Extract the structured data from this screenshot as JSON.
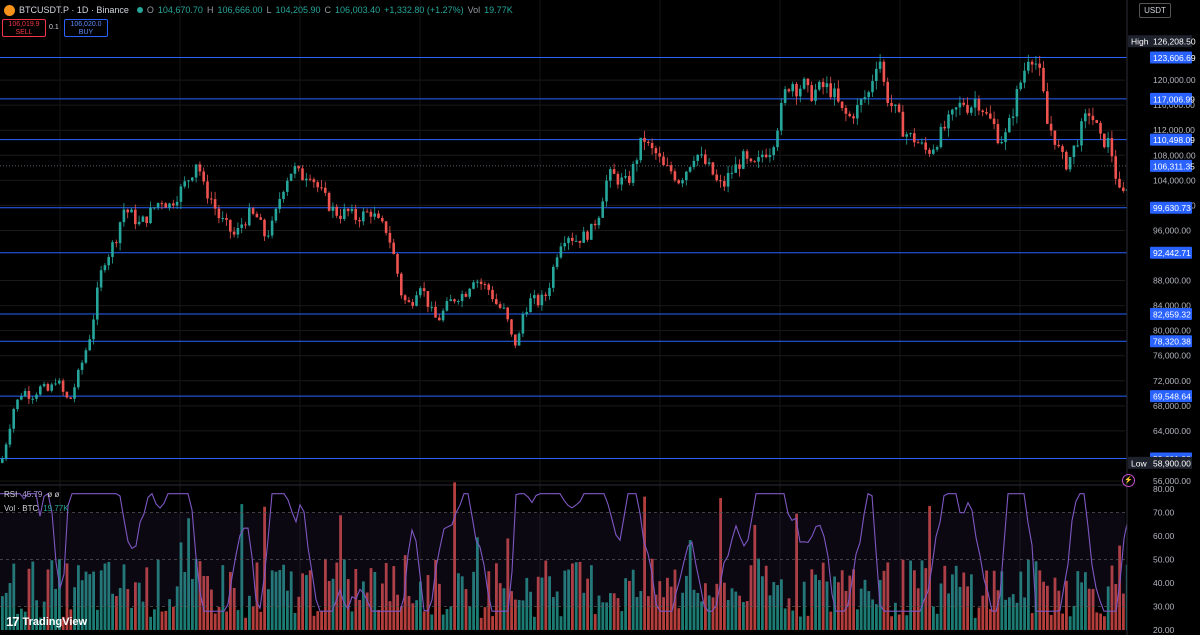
{
  "header": {
    "symbol": "BTCUSDT.P · 1D · Binance",
    "open_label": "O",
    "open": "104,670.70",
    "high_label": "H",
    "high": "106,666.00",
    "low_label": "L",
    "low": "104,205.90",
    "close_label": "C",
    "close": "106,003.40",
    "change": "+1,332.80 (+1.27%)",
    "vol_label": "Vol",
    "vol": "19.77K"
  },
  "trade": {
    "sell_price": "106,019.9",
    "sell_label": "SELL",
    "qty": "0.1",
    "buy_price": "106,020.0",
    "buy_label": "BUY"
  },
  "indicators": {
    "rsi_label": "RSI",
    "rsi_value": "45.79",
    "rsi_extra": "ø ø",
    "vol_label": "Vol · BTC",
    "vol_value": "19.77K"
  },
  "currency": "USDT",
  "branding": "TradingView",
  "colors": {
    "up": "#26a69a",
    "down": "#ef5350",
    "level": "#2962ff",
    "rsi": "#7e57c2",
    "background": "#000000"
  },
  "chart_data": {
    "type": "candlestick",
    "y_range": [
      56000,
      128000
    ],
    "price_ticks": [
      "56,000.00",
      "64,000.00",
      "68,000.00",
      "72,000.00",
      "76,000.00",
      "80,000.00",
      "84,000.00",
      "88,000.00",
      "96,000.00",
      "100,000.00",
      "104,000.00",
      "108,000.00",
      "112,000.00",
      "116,000.00",
      "120,000.00"
    ],
    "levels": [
      "123,606.69",
      "117,006.99",
      "110,498.09",
      "99,630.73",
      "92,442.71",
      "82,659.32",
      "78,320.38",
      "69,548.64",
      "59,601.98"
    ],
    "current_price": "106,311.35",
    "high": {
      "label": "High",
      "value": "126,208.50"
    },
    "low": {
      "label": "Low",
      "value": "58,900.00"
    },
    "price_path": [
      [
        0,
        58900
      ],
      [
        6,
        63000
      ],
      [
        12,
        67500
      ],
      [
        22,
        70500
      ],
      [
        30,
        69500
      ],
      [
        40,
        71000
      ],
      [
        48,
        70200
      ],
      [
        55,
        72500
      ],
      [
        62,
        70000
      ],
      [
        68,
        68500
      ],
      [
        75,
        72000
      ],
      [
        82,
        75500
      ],
      [
        90,
        80000
      ],
      [
        96,
        86000
      ],
      [
        102,
        91000
      ],
      [
        108,
        92500
      ],
      [
        115,
        95000
      ],
      [
        122,
        99500
      ],
      [
        130,
        98500
      ],
      [
        138,
        97000
      ],
      [
        145,
        98000
      ],
      [
        152,
        99500
      ],
      [
        160,
        101000
      ],
      [
        168,
        100000
      ],
      [
        175,
        101500
      ],
      [
        182,
        103000
      ],
      [
        190,
        105000
      ],
      [
        196,
        107500
      ],
      [
        202,
        103000
      ],
      [
        210,
        101000
      ],
      [
        218,
        98000
      ],
      [
        226,
        96500
      ],
      [
        234,
        95000
      ],
      [
        240,
        97000
      ],
      [
        248,
        98500
      ],
      [
        256,
        98000
      ],
      [
        264,
        95000
      ],
      [
        272,
        97000
      ],
      [
        278,
        101000
      ],
      [
        284,
        104000
      ],
      [
        292,
        106000
      ],
      [
        300,
        104500
      ],
      [
        308,
        105500
      ],
      [
        316,
        103000
      ],
      [
        322,
        101500
      ],
      [
        330,
        99500
      ],
      [
        338,
        98500
      ],
      [
        346,
        99000
      ],
      [
        354,
        98000
      ],
      [
        362,
        98500
      ],
      [
        370,
        99000
      ],
      [
        378,
        97000
      ],
      [
        386,
        96000
      ],
      [
        394,
        91000
      ],
      [
        400,
        86000
      ],
      [
        406,
        84000
      ],
      [
        412,
        85000
      ],
      [
        418,
        88000
      ],
      [
        424,
        85500
      ],
      [
        430,
        83000
      ],
      [
        436,
        81500
      ],
      [
        442,
        83000
      ],
      [
        448,
        84500
      ],
      [
        456,
        85500
      ],
      [
        464,
        86000
      ],
      [
        472,
        88500
      ],
      [
        480,
        87500
      ],
      [
        488,
        86500
      ],
      [
        496,
        84000
      ],
      [
        504,
        83000
      ],
      [
        510,
        79000
      ],
      [
        516,
        77500
      ],
      [
        522,
        83000
      ],
      [
        530,
        85000
      ],
      [
        538,
        84500
      ],
      [
        546,
        86000
      ],
      [
        552,
        90000
      ],
      [
        558,
        94000
      ],
      [
        566,
        95500
      ],
      [
        574,
        94500
      ],
      [
        582,
        95000
      ],
      [
        590,
        96000
      ],
      [
        598,
        99000
      ],
      [
        604,
        103500
      ],
      [
        610,
        105000
      ],
      [
        618,
        104000
      ],
      [
        626,
        103500
      ],
      [
        632,
        106000
      ],
      [
        638,
        109000
      ],
      [
        642,
        111000
      ],
      [
        648,
        109000
      ],
      [
        656,
        108000
      ],
      [
        662,
        106000
      ],
      [
        670,
        105500
      ],
      [
        678,
        104000
      ],
      [
        686,
        106000
      ],
      [
        694,
        108500
      ],
      [
        702,
        107000
      ],
      [
        710,
        105500
      ],
      [
        716,
        103500
      ],
      [
        722,
        103000
      ],
      [
        728,
        105000
      ],
      [
        734,
        106000
      ],
      [
        742,
        107500
      ],
      [
        750,
        106000
      ],
      [
        756,
        106500
      ],
      [
        762,
        108500
      ],
      [
        770,
        109000
      ],
      [
        778,
        114000
      ],
      [
        784,
        118000
      ],
      [
        790,
        120000
      ],
      [
        796,
        118500
      ],
      [
        802,
        119500
      ],
      [
        808,
        117500
      ],
      [
        816,
        118500
      ],
      [
        824,
        119000
      ],
      [
        832,
        118000
      ],
      [
        840,
        115000
      ],
      [
        848,
        114000
      ],
      [
        856,
        115500
      ],
      [
        862,
        117000
      ],
      [
        868,
        118000
      ],
      [
        874,
        122500
      ],
      [
        878,
        124000
      ],
      [
        884,
        118000
      ],
      [
        890,
        116000
      ],
      [
        896,
        114500
      ],
      [
        902,
        112000
      ],
      [
        908,
        111000
      ],
      [
        914,
        110500
      ],
      [
        920,
        109500
      ],
      [
        926,
        108500
      ],
      [
        932,
        109500
      ],
      [
        938,
        111000
      ],
      [
        944,
        112500
      ],
      [
        950,
        114000
      ],
      [
        956,
        115500
      ],
      [
        962,
        116500
      ],
      [
        968,
        115500
      ],
      [
        974,
        117000
      ],
      [
        980,
        116000
      ],
      [
        986,
        114000
      ],
      [
        992,
        113000
      ],
      [
        998,
        110500
      ],
      [
        1004,
        111000
      ],
      [
        1010,
        114000
      ],
      [
        1016,
        118000
      ],
      [
        1022,
        121000
      ],
      [
        1028,
        124500
      ],
      [
        1034,
        123000
      ],
      [
        1040,
        120000
      ],
      [
        1046,
        113000
      ],
      [
        1052,
        111500
      ],
      [
        1058,
        108500
      ],
      [
        1064,
        106500
      ],
      [
        1070,
        108000
      ],
      [
        1076,
        110500
      ],
      [
        1082,
        113000
      ],
      [
        1088,
        115000
      ],
      [
        1094,
        113000
      ],
      [
        1100,
        110000
      ],
      [
        1106,
        110500
      ],
      [
        1112,
        107500
      ],
      [
        1116,
        103000
      ],
      [
        1120,
        101000
      ],
      [
        1124,
        102500
      ],
      [
        1128,
        104500
      ],
      [
        1131,
        106311
      ]
    ],
    "rsi_ticks": [
      "80.00",
      "70.00",
      "60.00",
      "50.00",
      "40.00",
      "30.00",
      "20.00"
    ],
    "rsi_range": [
      20,
      80
    ],
    "rsi_bands": [
      30,
      50,
      70
    ]
  }
}
